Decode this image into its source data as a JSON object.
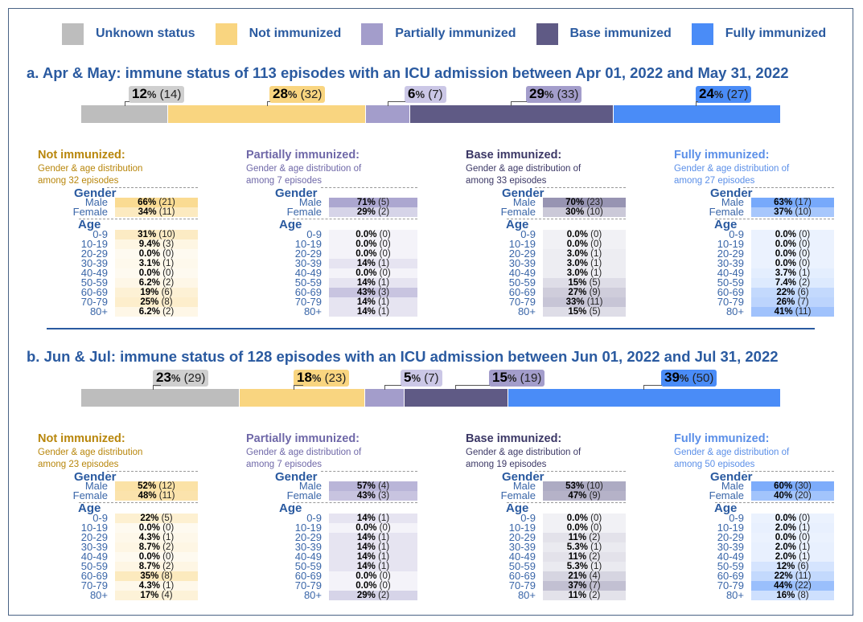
{
  "legend": [
    {
      "label": "Unknown status",
      "color": "#bdbdbd"
    },
    {
      "label": "Not immunized",
      "color": "#f9d580"
    },
    {
      "label": "Partially immunized",
      "color": "#a39dcb"
    },
    {
      "label": "Base immunized",
      "color": "#5f5a85"
    },
    {
      "label": "Fully immunized",
      "color": "#4a8cf7"
    }
  ],
  "chart_data": [
    {
      "type": "bar",
      "title": "a. Apr & May: immune status of 113 episodes with an ICU admission between Apr 01, 2022 and May 31, 2022",
      "total_episodes": 113,
      "stacked_bar": [
        {
          "category": "Unknown status",
          "percent": 12,
          "count": 14
        },
        {
          "category": "Not immunized",
          "percent": 28,
          "count": 32
        },
        {
          "category": "Partially immunized",
          "percent": 6,
          "count": 7
        },
        {
          "category": "Base immunized",
          "percent": 29,
          "count": 33
        },
        {
          "category": "Fully immunized",
          "percent": 24,
          "count": 27
        }
      ],
      "panels": [
        {
          "title": "Not immunized:",
          "subtitle1": "Gender & age distribution",
          "subtitle2": "among 32 episodes",
          "gender": [
            {
              "label": "Male",
              "pct": "66%",
              "n": "(21)",
              "v": 0.66
            },
            {
              "label": "Female",
              "pct": "34%",
              "n": "(11)",
              "v": 0.34
            }
          ],
          "age": [
            {
              "label": "0-9",
              "pct": "31%",
              "n": "(10)",
              "v": 0.31
            },
            {
              "label": "10-19",
              "pct": "9.4%",
              "n": "(3)",
              "v": 0.094
            },
            {
              "label": "20-29",
              "pct": "0.0%",
              "n": "(0)",
              "v": 0
            },
            {
              "label": "30-39",
              "pct": "3.1%",
              "n": "(1)",
              "v": 0.031
            },
            {
              "label": "40-49",
              "pct": "0.0%",
              "n": "(0)",
              "v": 0
            },
            {
              "label": "50-59",
              "pct": "6.2%",
              "n": "(2)",
              "v": 0.062
            },
            {
              "label": "60-69",
              "pct": "19%",
              "n": "(6)",
              "v": 0.19
            },
            {
              "label": "70-79",
              "pct": "25%",
              "n": "(8)",
              "v": 0.25
            },
            {
              "label": "80+",
              "pct": "6.2%",
              "n": "(2)",
              "v": 0.062
            }
          ]
        },
        {
          "title": "Partially immunized:",
          "subtitle1": "Gender & age distribution of",
          "subtitle2": "among 7 episodes",
          "gender": [
            {
              "label": "Male",
              "pct": "71%",
              "n": "(5)",
              "v": 0.71
            },
            {
              "label": "Female",
              "pct": "29%",
              "n": "(2)",
              "v": 0.29
            }
          ],
          "age": [
            {
              "label": "0-9",
              "pct": "0.0%",
              "n": "(0)",
              "v": 0
            },
            {
              "label": "10-19",
              "pct": "0.0%",
              "n": "(0)",
              "v": 0
            },
            {
              "label": "20-29",
              "pct": "0.0%",
              "n": "(0)",
              "v": 0
            },
            {
              "label": "30-39",
              "pct": "14%",
              "n": "(1)",
              "v": 0.14
            },
            {
              "label": "40-49",
              "pct": "0.0%",
              "n": "(0)",
              "v": 0
            },
            {
              "label": "50-59",
              "pct": "14%",
              "n": "(1)",
              "v": 0.14
            },
            {
              "label": "60-69",
              "pct": "43%",
              "n": "(3)",
              "v": 0.43
            },
            {
              "label": "70-79",
              "pct": "14%",
              "n": "(1)",
              "v": 0.14
            },
            {
              "label": "80+",
              "pct": "14%",
              "n": "(1)",
              "v": 0.14
            }
          ]
        },
        {
          "title": "Base immunized:",
          "subtitle1": "Gender & age distribution of",
          "subtitle2": "among 33 episodes",
          "gender": [
            {
              "label": "Male",
              "pct": "70%",
              "n": "(23)",
              "v": 0.7
            },
            {
              "label": "Female",
              "pct": "30%",
              "n": "(10)",
              "v": 0.3
            }
          ],
          "age": [
            {
              "label": "0-9",
              "pct": "0.0%",
              "n": "(0)",
              "v": 0
            },
            {
              "label": "10-19",
              "pct": "0.0%",
              "n": "(0)",
              "v": 0
            },
            {
              "label": "20-29",
              "pct": "3.0%",
              "n": "(1)",
              "v": 0.03
            },
            {
              "label": "30-39",
              "pct": "3.0%",
              "n": "(1)",
              "v": 0.03
            },
            {
              "label": "40-49",
              "pct": "3.0%",
              "n": "(1)",
              "v": 0.03
            },
            {
              "label": "50-59",
              "pct": "15%",
              "n": "(5)",
              "v": 0.15
            },
            {
              "label": "60-69",
              "pct": "27%",
              "n": "(9)",
              "v": 0.27
            },
            {
              "label": "70-79",
              "pct": "33%",
              "n": "(11)",
              "v": 0.33
            },
            {
              "label": "80+",
              "pct": "15%",
              "n": "(5)",
              "v": 0.15
            }
          ]
        },
        {
          "title": "Fully immunized:",
          "subtitle1": "Gender & age distribution of",
          "subtitle2": "among 27 episodes",
          "gender": [
            {
              "label": "Male",
              "pct": "63%",
              "n": "(17)",
              "v": 0.63
            },
            {
              "label": "Female",
              "pct": "37%",
              "n": "(10)",
              "v": 0.37
            }
          ],
          "age": [
            {
              "label": "0-9",
              "pct": "0.0%",
              "n": "(0)",
              "v": 0
            },
            {
              "label": "10-19",
              "pct": "0.0%",
              "n": "(0)",
              "v": 0
            },
            {
              "label": "20-29",
              "pct": "0.0%",
              "n": "(0)",
              "v": 0
            },
            {
              "label": "30-39",
              "pct": "0.0%",
              "n": "(0)",
              "v": 0
            },
            {
              "label": "40-49",
              "pct": "3.7%",
              "n": "(1)",
              "v": 0.037
            },
            {
              "label": "50-59",
              "pct": "7.4%",
              "n": "(2)",
              "v": 0.074
            },
            {
              "label": "60-69",
              "pct": "22%",
              "n": "(6)",
              "v": 0.22
            },
            {
              "label": "70-79",
              "pct": "26%",
              "n": "(7)",
              "v": 0.26
            },
            {
              "label": "80+",
              "pct": "41%",
              "n": "(11)",
              "v": 0.41
            }
          ]
        }
      ]
    },
    {
      "type": "bar",
      "title": "b. Jun & Jul: immune status of 128 episodes with an ICU admission between Jun 01, 2022 and Jul 31, 2022",
      "total_episodes": 128,
      "stacked_bar": [
        {
          "category": "Unknown status",
          "percent": 23,
          "count": 29
        },
        {
          "category": "Not immunized",
          "percent": 18,
          "count": 23
        },
        {
          "category": "Partially immunized",
          "percent": 5,
          "count": 7
        },
        {
          "category": "Base immunized",
          "percent": 15,
          "count": 19
        },
        {
          "category": "Fully immunized",
          "percent": 39,
          "count": 50
        }
      ],
      "panels": [
        {
          "title": "Not immunized:",
          "subtitle1": "Gender & age distribution",
          "subtitle2": "among 23 episodes",
          "gender": [
            {
              "label": "Male",
              "pct": "52%",
              "n": "(12)",
              "v": 0.52
            },
            {
              "label": "Female",
              "pct": "48%",
              "n": "(11)",
              "v": 0.48
            }
          ],
          "age": [
            {
              "label": "0-9",
              "pct": "22%",
              "n": "(5)",
              "v": 0.22
            },
            {
              "label": "10-19",
              "pct": "0.0%",
              "n": "(0)",
              "v": 0
            },
            {
              "label": "20-29",
              "pct": "4.3%",
              "n": "(1)",
              "v": 0.043
            },
            {
              "label": "30-39",
              "pct": "8.7%",
              "n": "(2)",
              "v": 0.087
            },
            {
              "label": "40-49",
              "pct": "0.0%",
              "n": "(0)",
              "v": 0
            },
            {
              "label": "50-59",
              "pct": "8.7%",
              "n": "(2)",
              "v": 0.087
            },
            {
              "label": "60-69",
              "pct": "35%",
              "n": "(8)",
              "v": 0.35
            },
            {
              "label": "70-79",
              "pct": "4.3%",
              "n": "(1)",
              "v": 0.043
            },
            {
              "label": "80+",
              "pct": "17%",
              "n": "(4)",
              "v": 0.17
            }
          ]
        },
        {
          "title": "Partially immunized:",
          "subtitle1": "Gender & age distribution of",
          "subtitle2": "among 7 episodes",
          "gender": [
            {
              "label": "Male",
              "pct": "57%",
              "n": "(4)",
              "v": 0.57
            },
            {
              "label": "Female",
              "pct": "43%",
              "n": "(3)",
              "v": 0.43
            }
          ],
          "age": [
            {
              "label": "0-9",
              "pct": "14%",
              "n": "(1)",
              "v": 0.14
            },
            {
              "label": "10-19",
              "pct": "0.0%",
              "n": "(0)",
              "v": 0
            },
            {
              "label": "20-29",
              "pct": "14%",
              "n": "(1)",
              "v": 0.14
            },
            {
              "label": "30-39",
              "pct": "14%",
              "n": "(1)",
              "v": 0.14
            },
            {
              "label": "40-49",
              "pct": "14%",
              "n": "(1)",
              "v": 0.14
            },
            {
              "label": "50-59",
              "pct": "14%",
              "n": "(1)",
              "v": 0.14
            },
            {
              "label": "60-69",
              "pct": "0.0%",
              "n": "(0)",
              "v": 0
            },
            {
              "label": "70-79",
              "pct": "0.0%",
              "n": "(0)",
              "v": 0
            },
            {
              "label": "80+",
              "pct": "29%",
              "n": "(2)",
              "v": 0.29
            }
          ]
        },
        {
          "title": "Base immunized:",
          "subtitle1": "Gender & age distribution of",
          "subtitle2": "among 19 episodes",
          "gender": [
            {
              "label": "Male",
              "pct": "53%",
              "n": "(10)",
              "v": 0.53
            },
            {
              "label": "Female",
              "pct": "47%",
              "n": "(9)",
              "v": 0.47
            }
          ],
          "age": [
            {
              "label": "0-9",
              "pct": "0.0%",
              "n": "(0)",
              "v": 0
            },
            {
              "label": "10-19",
              "pct": "0.0%",
              "n": "(0)",
              "v": 0
            },
            {
              "label": "20-29",
              "pct": "11%",
              "n": "(2)",
              "v": 0.11
            },
            {
              "label": "30-39",
              "pct": "5.3%",
              "n": "(1)",
              "v": 0.053
            },
            {
              "label": "40-49",
              "pct": "11%",
              "n": "(2)",
              "v": 0.11
            },
            {
              "label": "50-59",
              "pct": "5.3%",
              "n": "(1)",
              "v": 0.053
            },
            {
              "label": "60-69",
              "pct": "21%",
              "n": "(4)",
              "v": 0.21
            },
            {
              "label": "70-79",
              "pct": "37%",
              "n": "(7)",
              "v": 0.37
            },
            {
              "label": "80+",
              "pct": "11%",
              "n": "(2)",
              "v": 0.11
            }
          ]
        },
        {
          "title": "Fully immunized:",
          "subtitle1": "Gender & age distribution of",
          "subtitle2": "among 50 episodes",
          "gender": [
            {
              "label": "Male",
              "pct": "60%",
              "n": "(30)",
              "v": 0.6
            },
            {
              "label": "Female",
              "pct": "40%",
              "n": "(20)",
              "v": 0.4
            }
          ],
          "age": [
            {
              "label": "0-9",
              "pct": "0.0%",
              "n": "(0)",
              "v": 0
            },
            {
              "label": "10-19",
              "pct": "2.0%",
              "n": "(1)",
              "v": 0.02
            },
            {
              "label": "20-29",
              "pct": "0.0%",
              "n": "(0)",
              "v": 0
            },
            {
              "label": "30-39",
              "pct": "2.0%",
              "n": "(1)",
              "v": 0.02
            },
            {
              "label": "40-49",
              "pct": "2.0%",
              "n": "(1)",
              "v": 0.02
            },
            {
              "label": "50-59",
              "pct": "12%",
              "n": "(6)",
              "v": 0.12
            },
            {
              "label": "60-69",
              "pct": "22%",
              "n": "(11)",
              "v": 0.22
            },
            {
              "label": "70-79",
              "pct": "44%",
              "n": "(22)",
              "v": 0.44
            },
            {
              "label": "80+",
              "pct": "16%",
              "n": "(8)",
              "v": 0.16
            }
          ]
        }
      ]
    }
  ],
  "labels": {
    "gender": "Gender",
    "age": "Age",
    "percent_sign": "%"
  },
  "panel_colors": {
    "titles": [
      "#b8860b",
      "#6f68a8",
      "#3c3866",
      "#5b8fe8"
    ],
    "cells_rgb": [
      [
        249,
        213,
        128
      ],
      [
        163,
        157,
        203
      ],
      [
        140,
        136,
        170
      ],
      [
        90,
        150,
        250
      ]
    ]
  }
}
